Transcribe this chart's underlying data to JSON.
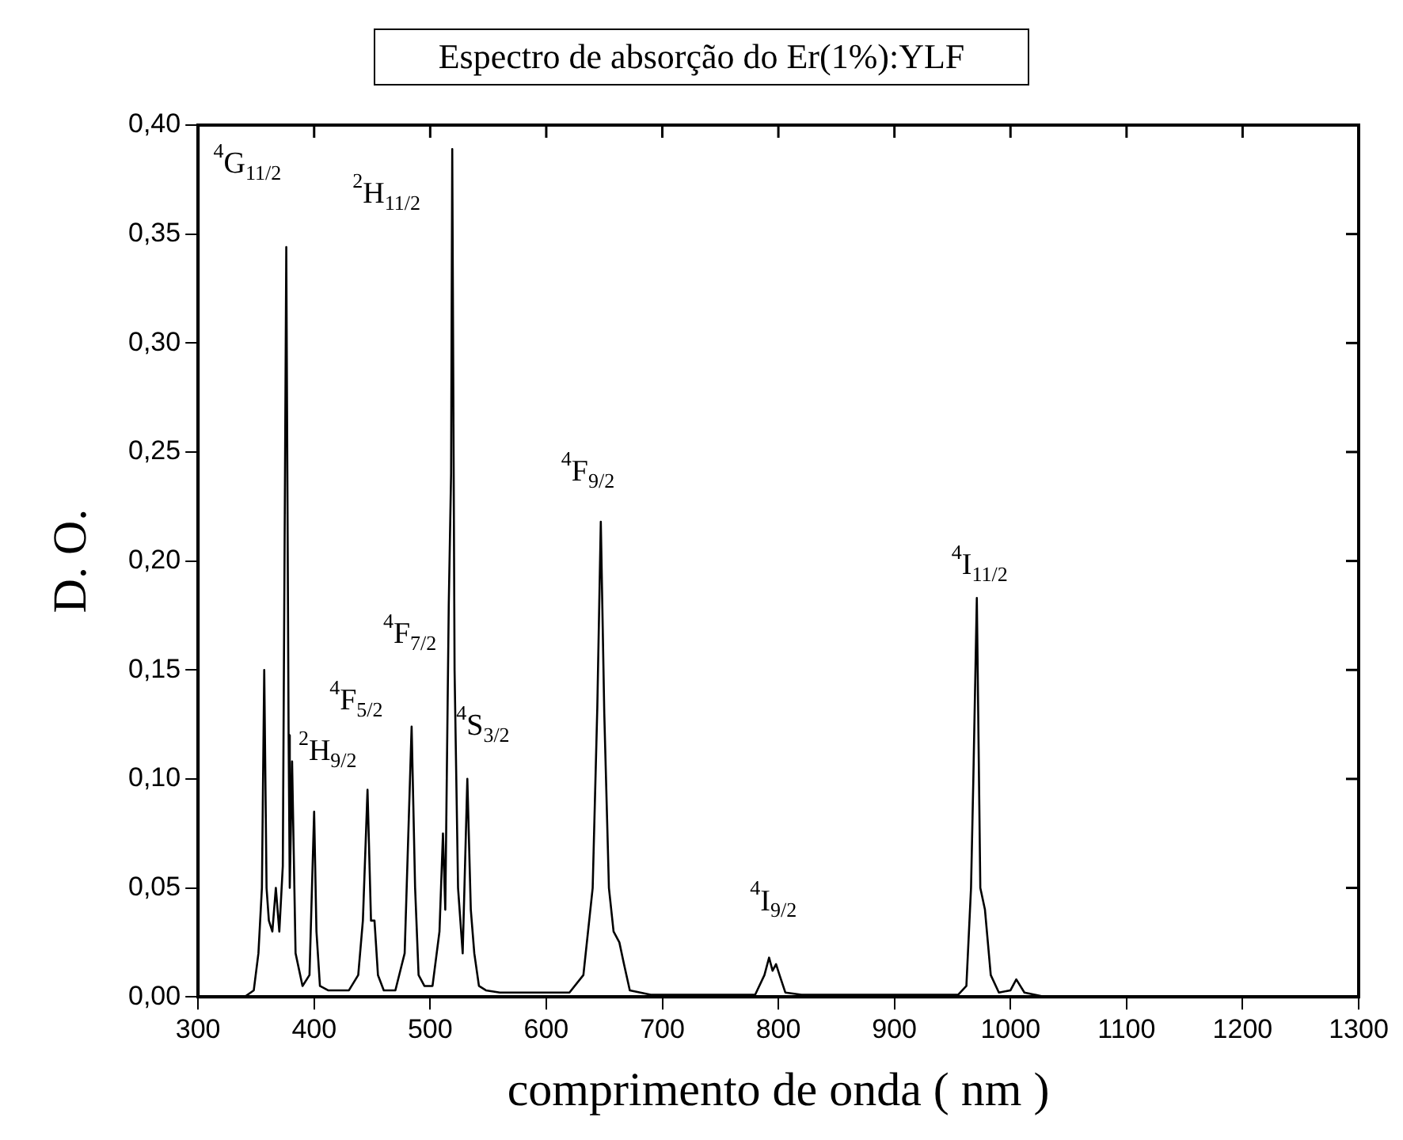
{
  "chart_data": {
    "type": "line",
    "title": "Espectro de absorção do Er(1%):YLF",
    "xlabel": "comprimento de onda ( nm )",
    "ylabel": "D. O.",
    "color": "#000000",
    "x": [
      340,
      348,
      352,
      355,
      357,
      359,
      361,
      364,
      367,
      370,
      373,
      376,
      378,
      379,
      381,
      384,
      390,
      396,
      400,
      402,
      405,
      412,
      430,
      438,
      442,
      446,
      449,
      452,
      455,
      460,
      470,
      478,
      484,
      487,
      490,
      495,
      502,
      508,
      511,
      513,
      516,
      518,
      519,
      521,
      524,
      528,
      532,
      535,
      538,
      542,
      548,
      560,
      620,
      632,
      640,
      644,
      647,
      650,
      654,
      658,
      663,
      667,
      672,
      690,
      780,
      788,
      792,
      795,
      798,
      801,
      806,
      820,
      955,
      962,
      966,
      968,
      971,
      974,
      978,
      983,
      990,
      1000,
      1005,
      1012,
      1030
    ],
    "values": [
      0,
      0.003,
      0.02,
      0.05,
      0.15,
      0.05,
      0.035,
      0.03,
      0.05,
      0.03,
      0.06,
      0.344,
      0.12,
      0.05,
      0.108,
      0.02,
      0.005,
      0.01,
      0.085,
      0.03,
      0.005,
      0.003,
      0.003,
      0.01,
      0.035,
      0.095,
      0.035,
      0.035,
      0.01,
      0.003,
      0.003,
      0.02,
      0.124,
      0.05,
      0.01,
      0.005,
      0.005,
      0.03,
      0.075,
      0.04,
      0.18,
      0.24,
      0.389,
      0.15,
      0.05,
      0.02,
      0.1,
      0.04,
      0.02,
      0.005,
      0.003,
      0.002,
      0.002,
      0.01,
      0.05,
      0.133,
      0.218,
      0.13,
      0.05,
      0.03,
      0.025,
      0.015,
      0.003,
      0.001,
      0.001,
      0.01,
      0.018,
      0.012,
      0.015,
      0.01,
      0.002,
      0.001,
      0.001,
      0.005,
      0.05,
      0.1,
      0.183,
      0.05,
      0.04,
      0.01,
      0.002,
      0.003,
      0.008,
      0.002,
      0
    ],
    "xlim": [
      300,
      1300
    ],
    "ylim": [
      0,
      0.4
    ],
    "xticks": [
      300,
      400,
      500,
      600,
      700,
      800,
      900,
      1000,
      1100,
      1200,
      1300
    ],
    "yticks": [
      {
        "value": 0,
        "label": "0,00"
      },
      {
        "value": 0.05,
        "label": "0,05"
      },
      {
        "value": 0.1,
        "label": "0,10"
      },
      {
        "value": 0.15,
        "label": "0,15"
      },
      {
        "value": 0.2,
        "label": "0,20"
      },
      {
        "value": 0.25,
        "label": "0,25"
      },
      {
        "value": 0.3,
        "label": "0,30"
      },
      {
        "value": 0.35,
        "label": "0,35"
      },
      {
        "value": 0.4,
        "label": "0,40"
      }
    ],
    "annotations": [
      {
        "text": "$^{4}$G$_{11/2}$",
        "x": 376,
        "y": 0.344
      },
      {
        "text": "$^{2}$H$_{11/2}$",
        "x": 519,
        "y": 0.389
      },
      {
        "text": "$^{2}$H$_{9/2}$",
        "x": 381,
        "y": 0.108
      },
      {
        "text": "$^{4}$F$_{5/2}$",
        "x": 446,
        "y": 0.095
      },
      {
        "text": "$^{4}$F$_{7/2}$",
        "x": 484,
        "y": 0.124
      },
      {
        "text": "$^{4}$S$_{3/2}$",
        "x": 532,
        "y": 0.1
      },
      {
        "text": "$^{4}$F$_{9/2}$",
        "x": 647,
        "y": 0.218
      },
      {
        "text": "$^{4}$I$_{9/2}$",
        "x": 792,
        "y": 0.018
      },
      {
        "text": "$^{4}$I$_{11/2}$",
        "x": 971,
        "y": 0.183
      }
    ]
  }
}
